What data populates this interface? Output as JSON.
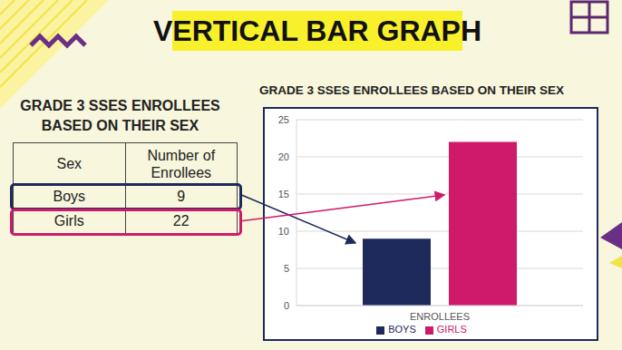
{
  "header": {
    "title": "VERTICAL BAR GRAPH"
  },
  "table": {
    "title": "GRADE 3 SSES ENROLLEES BASED ON THEIR SEX",
    "columns": [
      "Sex",
      "Number of Enrollees"
    ],
    "rows": [
      [
        "Boys",
        9
      ],
      [
        "Girls",
        22
      ]
    ]
  },
  "chart_data": {
    "type": "bar",
    "title": "GRADE 3 SSES ENROLLEES BASED ON THEIR SEX",
    "categories": [
      "ENROLLEES"
    ],
    "series": [
      {
        "name": "BOYS",
        "color": "#1f2a5c",
        "values": [
          9
        ]
      },
      {
        "name": "GIRLS",
        "color": "#cf1a6c",
        "values": [
          22
        ]
      }
    ],
    "ylim": [
      0,
      25
    ],
    "yticks": [
      0,
      5,
      10,
      15,
      20,
      25
    ],
    "grid": true,
    "legend": "bottom"
  }
}
